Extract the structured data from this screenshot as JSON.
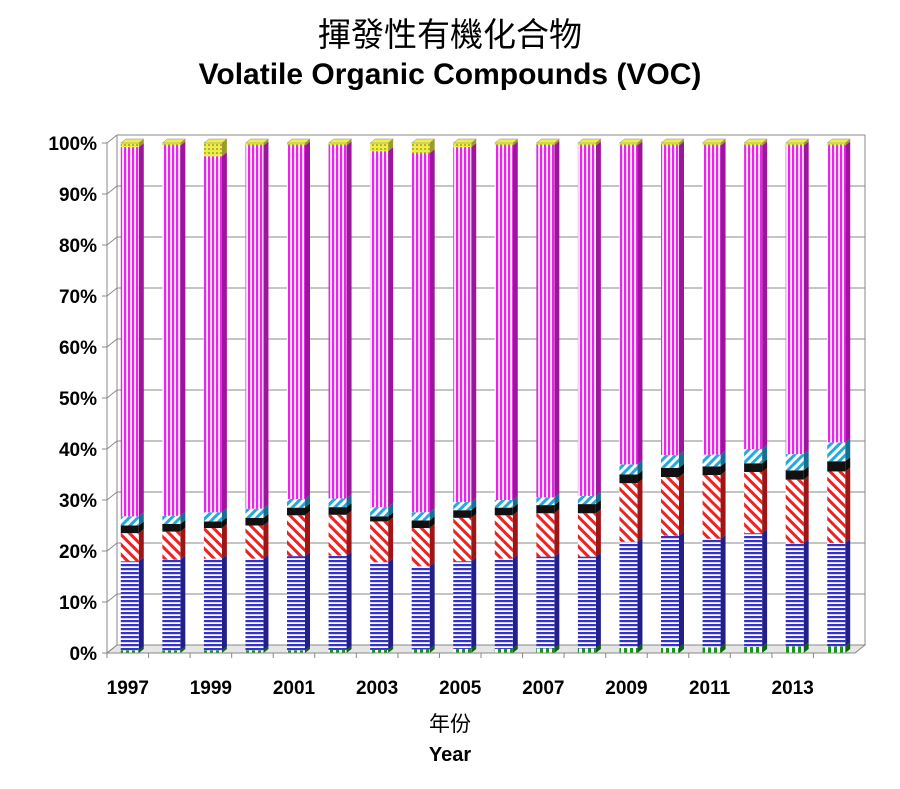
{
  "chart_data": {
    "type": "bar",
    "stacked": true,
    "title": "揮發性有機化合物",
    "subtitle": "Volatile Organic Compounds (VOC)",
    "xlabel": "年份",
    "xlabel_en": "Year",
    "ylim": [
      0,
      100
    ],
    "y_ticks": [
      "0%",
      "10%",
      "20%",
      "30%",
      "40%",
      "50%",
      "60%",
      "70%",
      "80%",
      "90%",
      "100%"
    ],
    "categories": [
      "1997",
      "1998",
      "1999",
      "2000",
      "2001",
      "2002",
      "2003",
      "2004",
      "2005",
      "2006",
      "2007",
      "2008",
      "2009",
      "2010",
      "2011",
      "2012",
      "2013",
      "2014"
    ],
    "x_tick_labels": [
      "1997",
      "",
      "1999",
      "",
      "2001",
      "",
      "2003",
      "",
      "2005",
      "",
      "2007",
      "",
      "2009",
      "",
      "2011",
      "",
      "2013",
      ""
    ],
    "grid": true,
    "series": [
      {
        "color": "#119911",
        "pattern": "green-vertical",
        "values": [
          0.5,
          0.5,
          0.5,
          0.5,
          0.5,
          0.6,
          0.6,
          0.7,
          0.8,
          0.8,
          0.9,
          0.9,
          1.0,
          1.0,
          1.1,
          1.2,
          1.3,
          1.3
        ]
      },
      {
        "color": "#3333cc",
        "pattern": "blue-horizontal",
        "values": [
          17.5,
          17.8,
          18.0,
          18.0,
          18.5,
          18.5,
          17.2,
          16.3,
          17.2,
          17.7,
          18.0,
          18.0,
          20.8,
          22.0,
          21.3,
          22.3,
          20.2,
          20.3
        ]
      },
      {
        "color": "#ee2222",
        "pattern": "red-diagonal",
        "values": [
          5.5,
          5.5,
          6.0,
          6.5,
          8.0,
          8.0,
          8.0,
          7.5,
          8.5,
          8.5,
          8.5,
          8.5,
          11.5,
          11.5,
          12.5,
          12.0,
          12.5,
          14.0
        ]
      },
      {
        "color": "#111111",
        "pattern": "black-solid",
        "values": [
          1.5,
          1.5,
          1.3,
          1.5,
          1.5,
          1.5,
          1.0,
          1.5,
          1.5,
          1.5,
          1.6,
          1.8,
          1.7,
          1.8,
          1.7,
          1.7,
          1.8,
          2.0
        ]
      },
      {
        "color": "#22aadd",
        "pattern": "cyan-diagonal",
        "values": [
          1.8,
          1.6,
          1.8,
          1.8,
          1.7,
          1.7,
          1.8,
          1.6,
          1.6,
          1.5,
          1.5,
          1.6,
          2.0,
          2.5,
          2.3,
          2.8,
          3.2,
          3.7
        ]
      },
      {
        "color": "#ee22ee",
        "pattern": "magenta-vertical",
        "values": [
          72.4,
          72.6,
          69.8,
          71.2,
          69.3,
          69.2,
          69.8,
          70.4,
          69.6,
          69.5,
          69.1,
          68.7,
          62.5,
          60.7,
          60.6,
          59.5,
          60.5,
          58.2
        ]
      },
      {
        "color": "#eeee44",
        "pattern": "yellow-dotted",
        "values": [
          0.8,
          0.5,
          2.6,
          0.5,
          0.5,
          0.5,
          1.6,
          2.0,
          0.8,
          0.5,
          0.4,
          0.5,
          0.5,
          0.5,
          0.5,
          0.5,
          0.5,
          0.5
        ]
      }
    ]
  }
}
